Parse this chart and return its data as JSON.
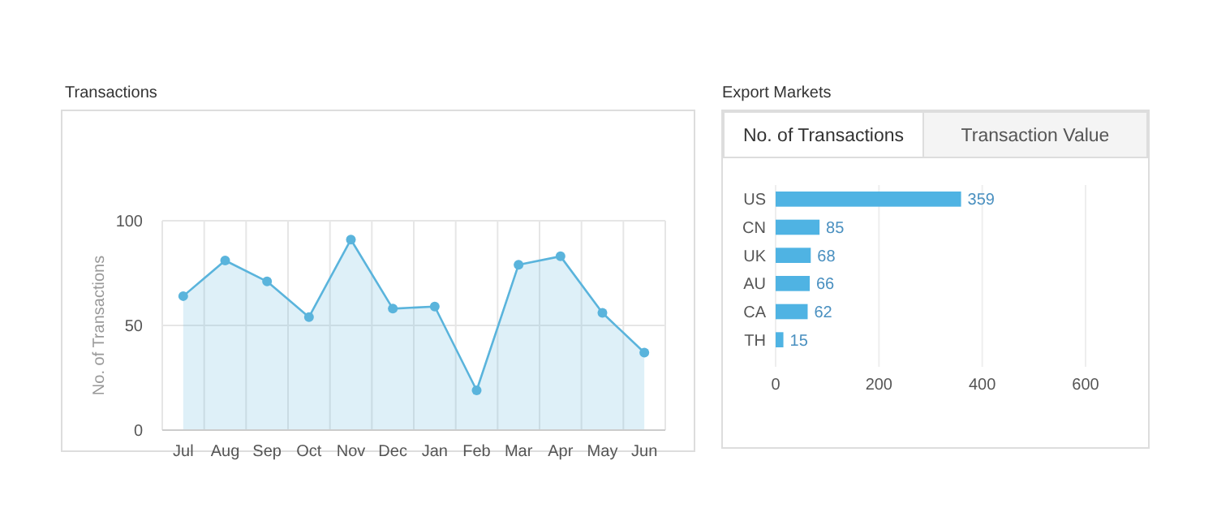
{
  "chart_data": [
    {
      "type": "area",
      "title": "Transactions",
      "ylabel": "No. of Transactions",
      "categories": [
        "Jul",
        "Aug",
        "Sep",
        "Oct",
        "Nov",
        "Dec",
        "Jan",
        "Feb",
        "Mar",
        "Apr",
        "May",
        "Jun"
      ],
      "series": [
        {
          "color": "#5ab4dc",
          "values": [
            64,
            81,
            71,
            54,
            91,
            58,
            59,
            19,
            79,
            83,
            56,
            37
          ]
        }
      ],
      "ylim": [
        0,
        100
      ],
      "yticks": [
        0,
        50,
        100
      ],
      "grid": true,
      "marker": "circle"
    },
    {
      "type": "bar",
      "orientation": "horizontal",
      "title": "Export Markets",
      "annotations": [
        "No. of Transactions",
        "Transaction Value"
      ],
      "categories": [
        "US",
        "CN",
        "UK",
        "AU",
        "CA",
        "TH"
      ],
      "series": [
        {
          "color": "#4fb3e3",
          "values": [
            359,
            85,
            68,
            66,
            62,
            15
          ]
        }
      ],
      "xlim": [
        0,
        600
      ],
      "xticks": [
        0,
        200,
        400,
        600
      ],
      "grid": "x",
      "data_labels": true
    }
  ]
}
